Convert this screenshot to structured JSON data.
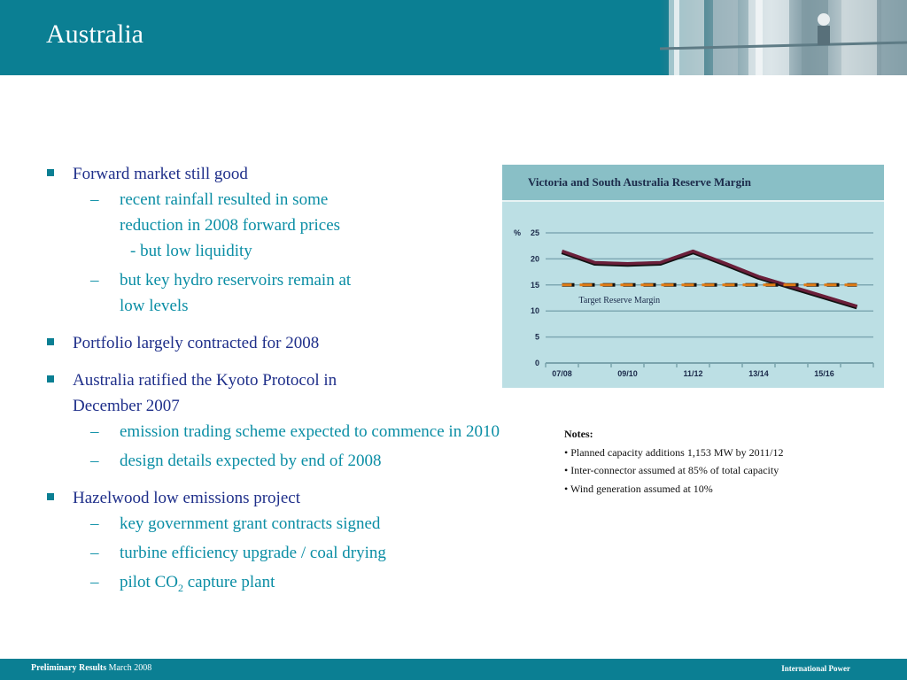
{
  "slide": {
    "title": "Australia"
  },
  "content": {
    "b1": {
      "text": "Forward market still good",
      "s1": {
        "l1": "recent rainfall resulted in some",
        "l2": "reduction in 2008 forward prices",
        "l3": "- but low liquidity"
      },
      "s2": {
        "l1": "but key hydro reservoirs remain at",
        "l2": "low levels"
      }
    },
    "b2": {
      "text": "Portfolio largely contracted for 2008"
    },
    "b3": {
      "l1": "Australia ratified the Kyoto Protocol in",
      "l2": "December 2007",
      "s1": "emission trading scheme expected to commence in 2010",
      "s2": "design details expected by end of 2008"
    },
    "b4": {
      "text": "Hazelwood low emissions project",
      "s1": "key government grant contracts signed",
      "s2": "turbine efficiency upgrade / coal drying",
      "s3": {
        "pre": "pilot CO",
        "sub": "2",
        "post": " capture plant"
      }
    }
  },
  "chart_data": {
    "type": "line",
    "title": "Victoria and South Australia Reserve Margin",
    "ylabel": "%",
    "ylim": [
      0,
      25
    ],
    "yticks": [
      0,
      5,
      10,
      15,
      20,
      25
    ],
    "x_positions": 10,
    "x_tick_labels": [
      {
        "pos": 0,
        "label": "07/08"
      },
      {
        "pos": 2,
        "label": "09/10"
      },
      {
        "pos": 4,
        "label": "11/12"
      },
      {
        "pos": 6,
        "label": "13/14"
      },
      {
        "pos": 8,
        "label": "15/16"
      }
    ],
    "series": [
      {
        "values": [
          21.5,
          19.3,
          19.1,
          19.3,
          21.5,
          19.1,
          16.6,
          14.7,
          12.8,
          10.9
        ],
        "color": "#6b1f3a",
        "style": "solid"
      },
      {
        "name": "Target Reserve Margin",
        "values": [
          15,
          15,
          15,
          15,
          15,
          15,
          15,
          15,
          15,
          15
        ],
        "color": "#e07b14",
        "style": "dashed"
      }
    ],
    "annotations": [
      {
        "text": "Target Reserve Margin"
      }
    ],
    "grid": true
  },
  "notes": {
    "heading": "Notes:",
    "items": [
      "• Planned capacity additions 1,153 MW by 2011/12",
      "• Inter-connector assumed at 85% of total capacity",
      "• Wind generation assumed at 10%"
    ]
  },
  "footer": {
    "left_bold": "Preliminary Results",
    "left_rest": " March 2008",
    "right": "International Power"
  },
  "colors": {
    "header": "#0b7f93",
    "bullet_text": "#1f2f8a",
    "sub_text": "#0b8ea5",
    "chart_bg": "#bcdfe4",
    "chart_head": "#89bfc6"
  }
}
